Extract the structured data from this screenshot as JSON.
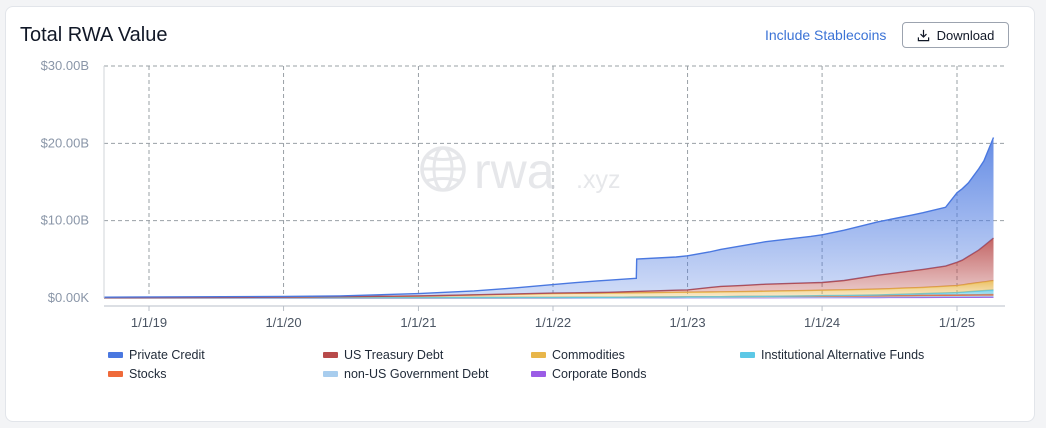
{
  "header": {
    "title": "Total RWA Value",
    "stablecoins_label": "Include Stablecoins",
    "download_label": "Download"
  },
  "watermark": {
    "text_main": "rwa",
    "text_suffix": ".xyz"
  },
  "chart_data": {
    "type": "area",
    "stacked": true,
    "x_ticks": [
      "1/1/19",
      "1/1/20",
      "1/1/21",
      "1/1/22",
      "1/1/23",
      "1/1/24",
      "1/1/25"
    ],
    "y_ticks": [
      "$0.00K",
      "$10.00B",
      "$20.00B",
      "$30.00B"
    ],
    "ylim_billions": [
      0,
      30
    ],
    "xlim": [
      "2018-09-01",
      "2025-04-15"
    ],
    "grid": true,
    "legend_position": "bottom",
    "series": [
      {
        "name": "Private Credit",
        "color": "#4a78e0",
        "points": [
          [
            "2018-09-01",
            0.05
          ],
          [
            "2020-06-01",
            0.1
          ],
          [
            "2021-01-01",
            0.3
          ],
          [
            "2021-06-01",
            0.5
          ],
          [
            "2021-10-01",
            0.8
          ],
          [
            "2022-01-01",
            1.1
          ],
          [
            "2022-03-01",
            1.3
          ],
          [
            "2022-05-01",
            1.5
          ],
          [
            "2022-08-15",
            1.7
          ],
          [
            "2022-08-16",
            4.2
          ],
          [
            "2022-12-01",
            4.3
          ],
          [
            "2023-03-01",
            4.6
          ],
          [
            "2023-08-01",
            5.5
          ],
          [
            "2023-12-01",
            6.0
          ],
          [
            "2024-03-01",
            6.5
          ],
          [
            "2024-06-01",
            6.9
          ],
          [
            "2024-09-01",
            7.2
          ],
          [
            "2024-12-01",
            7.6
          ],
          [
            "2025-01-01",
            9.0
          ],
          [
            "2025-02-01",
            9.5
          ],
          [
            "2025-03-15",
            11.0
          ],
          [
            "2025-04-10",
            13.0
          ]
        ]
      },
      {
        "name": "US Treasury Debt",
        "color": "#b84a4a",
        "points": [
          [
            "2018-09-01",
            0
          ],
          [
            "2020-01-01",
            0
          ],
          [
            "2021-01-01",
            0.02
          ],
          [
            "2022-01-01",
            0.05
          ],
          [
            "2022-06-01",
            0.1
          ],
          [
            "2023-01-01",
            0.3
          ],
          [
            "2023-04-01",
            0.7
          ],
          [
            "2023-08-01",
            0.9
          ],
          [
            "2024-01-01",
            1.0
          ],
          [
            "2024-03-01",
            1.2
          ],
          [
            "2024-06-01",
            1.8
          ],
          [
            "2024-09-01",
            2.2
          ],
          [
            "2024-12-01",
            2.6
          ],
          [
            "2025-01-15",
            3.2
          ],
          [
            "2025-03-01",
            4.2
          ],
          [
            "2025-04-10",
            5.5
          ]
        ]
      },
      {
        "name": "Commodities",
        "color": "#e8b64a",
        "points": [
          [
            "2018-09-01",
            0
          ],
          [
            "2020-01-01",
            0.05
          ],
          [
            "2021-01-01",
            0.2
          ],
          [
            "2021-09-01",
            0.4
          ],
          [
            "2022-01-01",
            0.5
          ],
          [
            "2023-01-01",
            0.6
          ],
          [
            "2024-01-01",
            0.7
          ],
          [
            "2024-10-01",
            0.8
          ],
          [
            "2025-01-01",
            0.9
          ],
          [
            "2025-04-10",
            1.2
          ]
        ]
      },
      {
        "name": "Institutional Alternative Funds",
        "color": "#5cc8e6",
        "points": [
          [
            "2018-09-01",
            0
          ],
          [
            "2023-06-01",
            0
          ],
          [
            "2024-06-01",
            0.1
          ],
          [
            "2025-01-01",
            0.3
          ],
          [
            "2025-04-10",
            0.6
          ]
        ]
      },
      {
        "name": "Stocks",
        "color": "#ef6a3a",
        "points": [
          [
            "2018-09-01",
            0.05
          ],
          [
            "2021-01-01",
            0.05
          ],
          [
            "2022-01-01",
            0.08
          ],
          [
            "2023-01-01",
            0.1
          ],
          [
            "2024-01-01",
            0.12
          ],
          [
            "2025-04-10",
            0.15
          ]
        ]
      },
      {
        "name": "non-US Government Debt",
        "color": "#a8cdee",
        "points": [
          [
            "2018-09-01",
            0
          ],
          [
            "2022-06-01",
            0
          ],
          [
            "2023-06-01",
            0.05
          ],
          [
            "2024-06-01",
            0.1
          ],
          [
            "2025-04-10",
            0.2
          ]
        ]
      },
      {
        "name": "Corporate Bonds",
        "color": "#9b5ce6",
        "points": [
          [
            "2018-09-01",
            0
          ],
          [
            "2022-01-01",
            0
          ],
          [
            "2023-01-01",
            0.02
          ],
          [
            "2024-01-01",
            0.05
          ],
          [
            "2025-04-10",
            0.1
          ]
        ]
      }
    ]
  }
}
